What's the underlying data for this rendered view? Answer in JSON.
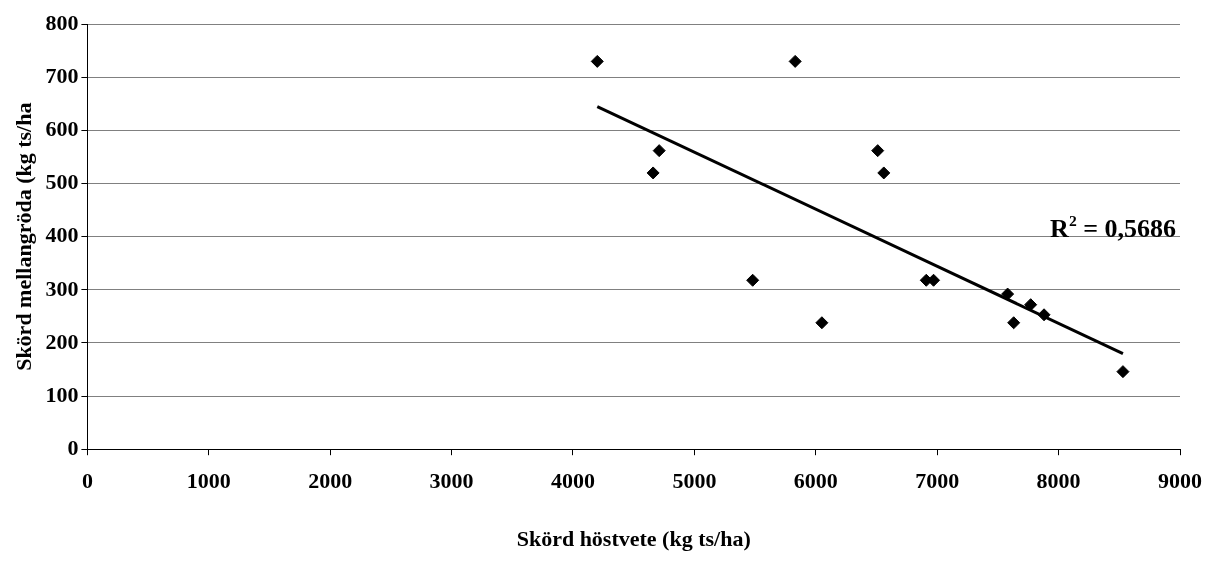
{
  "chart_data": {
    "type": "scatter",
    "xlabel": "Skörd höstvete (kg ts/ha)",
    "ylabel": "Skörd mellangröda (kg ts/ha",
    "xlim": [
      0,
      9000
    ],
    "xticks": [
      0,
      1000,
      2000,
      3000,
      4000,
      5000,
      6000,
      7000,
      8000,
      9000
    ],
    "ylim": [
      0,
      800
    ],
    "yticks": [
      0,
      100,
      200,
      300,
      400,
      500,
      600,
      700,
      800
    ],
    "grid": "y",
    "legend": false,
    "marker": "diamond",
    "annotations": [
      "R$^{2}$ = 0,5686"
    ],
    "series": [
      {
        "color": "#000000",
        "x": [
          4200,
          4660,
          4710,
          5480,
          5830,
          6050,
          6510,
          6560,
          6910,
          6970,
          7580,
          7630,
          7770,
          7880,
          8530
        ],
        "values": [
          730,
          520,
          562,
          318,
          730,
          238,
          562,
          520,
          318,
          318,
          292,
          238,
          272,
          253,
          146
        ]
      },
      {
        "type": "line",
        "color": "#000000",
        "line_style": "solid",
        "marker": "none",
        "x": [
          4200,
          8530
        ],
        "values": [
          645,
          180
        ]
      }
    ]
  }
}
